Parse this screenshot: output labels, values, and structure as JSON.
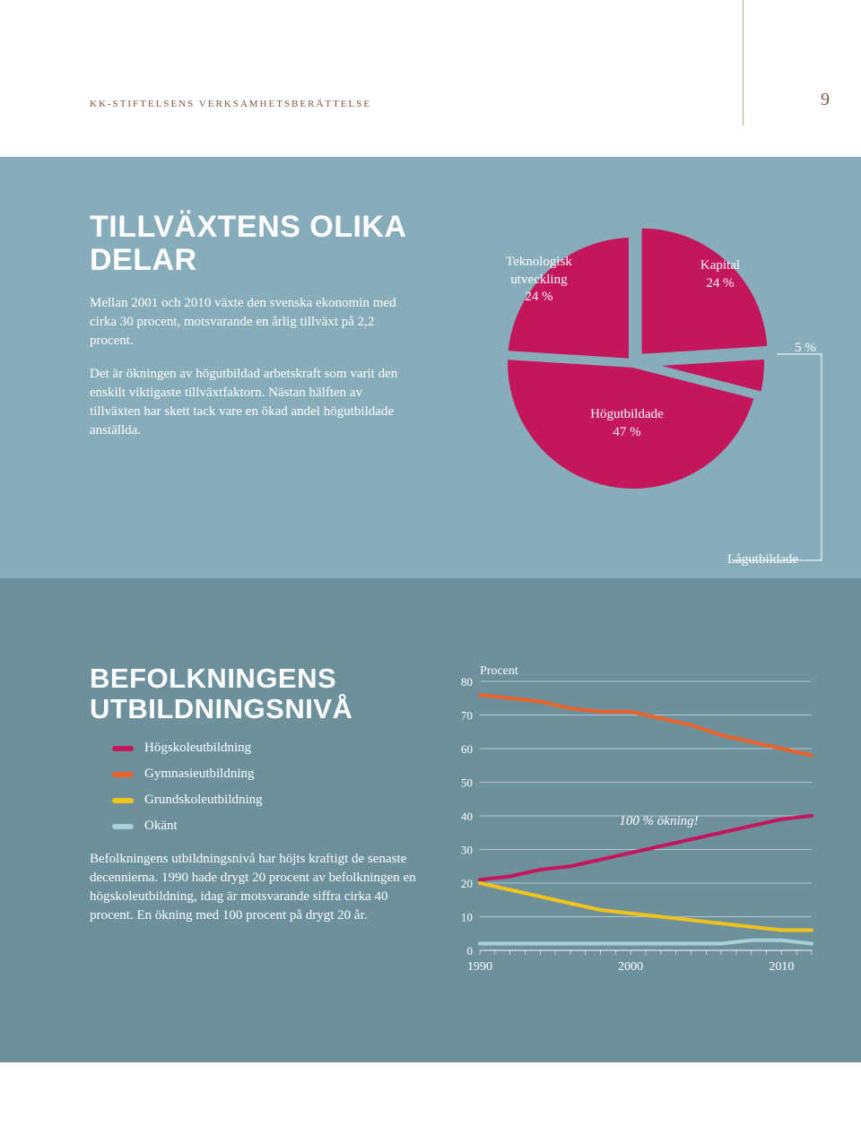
{
  "header": {
    "text": "kk-stiftelsens verksamhetsberättelse",
    "page_number": "9"
  },
  "colors": {
    "section1_bg": "#88adba",
    "section2_bg": "#6c919d",
    "magenta": "#c3165b",
    "orange": "#e8622a",
    "yellow": "#f2c419",
    "lightblue": "#a9d0d8",
    "white": "#ffffff",
    "brown": "#7f5a4a"
  },
  "section1": {
    "title": "TILLVÄXTENS OLIKA DELAR",
    "para1": "Mellan 2001 och 2010 växte den svenska ekonomin med cirka 30 procent, motsvarande en årlig tillväxt på 2,2 procent.",
    "para2": "Det är ökningen av högutbildad arbetskraft som varit den enskilt viktigaste tillväxtfaktorn. Nästan hälften av tillväxten har skett tack vare en ökad andel högutbildade anställda."
  },
  "pie": {
    "bg": "#88adba",
    "slices": [
      {
        "label_l1": "Teknologisk",
        "label_l2": "utveckling",
        "label_pct": "24 %",
        "value": 24,
        "color": "#c3165b"
      },
      {
        "label_l1": "Kapital",
        "label_pct": "24 %",
        "value": 24,
        "color": "#c3165b"
      },
      {
        "label_pct": "5 %",
        "value": 5,
        "color": "#c3165b"
      },
      {
        "label_l1": "Högutbildade",
        "label_pct": "47 %",
        "value": 47,
        "color": "#c3165b"
      }
    ],
    "footnote": "Lågutbildade"
  },
  "section2": {
    "title": "BEFOLKNINGENS UTBILDNINGSNIVÅ",
    "legend": [
      {
        "label": "Högskoleutbildning",
        "color": "#c3165b"
      },
      {
        "label": "Gymnasieutbildning",
        "color": "#e8622a"
      },
      {
        "label": "Grundskoleutbildning",
        "color": "#f2c419"
      },
      {
        "label": "Okänt",
        "color": "#a9d0d8"
      }
    ],
    "para": "Befolkningens utbildningsnivå har höjts kraftigt de senaste decennierna. 1990 hade drygt 20 procent av befolkningen en högskoleutbildning, idag är motsvarande siffra cirka 40 procent. En ökning med 100 procent på drygt 20 år."
  },
  "line_chart": {
    "ylabel": "Procent",
    "annotation": "100 % ökning!",
    "ymin": 0,
    "ymax": 80,
    "ytick_step": 10,
    "xmin": 1990,
    "xmax": 2012,
    "xticks": [
      1990,
      2000,
      2010
    ],
    "grid_color": "#ffffff",
    "series": [
      {
        "name": "Gymnasieutbildning",
        "color": "#e8622a",
        "points": [
          [
            1990,
            76
          ],
          [
            1992,
            75
          ],
          [
            1994,
            74
          ],
          [
            1996,
            72
          ],
          [
            1998,
            71
          ],
          [
            2000,
            71
          ],
          [
            2002,
            69
          ],
          [
            2004,
            67
          ],
          [
            2006,
            64
          ],
          [
            2008,
            62
          ],
          [
            2010,
            60
          ],
          [
            2012,
            58
          ]
        ]
      },
      {
        "name": "Högskoleutbildning",
        "color": "#c3165b",
        "points": [
          [
            1990,
            21
          ],
          [
            1992,
            22
          ],
          [
            1994,
            24
          ],
          [
            1996,
            25
          ],
          [
            1998,
            27
          ],
          [
            2000,
            29
          ],
          [
            2002,
            31
          ],
          [
            2004,
            33
          ],
          [
            2006,
            35
          ],
          [
            2008,
            37
          ],
          [
            2010,
            39
          ],
          [
            2012,
            40
          ]
        ]
      },
      {
        "name": "Grundskoleutbildning",
        "color": "#f2c419",
        "points": [
          [
            1990,
            20
          ],
          [
            1992,
            18
          ],
          [
            1994,
            16
          ],
          [
            1996,
            14
          ],
          [
            1998,
            12
          ],
          [
            2000,
            11
          ],
          [
            2002,
            10
          ],
          [
            2004,
            9
          ],
          [
            2006,
            8
          ],
          [
            2008,
            7
          ],
          [
            2010,
            6
          ],
          [
            2012,
            6
          ]
        ]
      },
      {
        "name": "Okänt",
        "color": "#a9d0d8",
        "points": [
          [
            1990,
            2
          ],
          [
            1992,
            2
          ],
          [
            1994,
            2
          ],
          [
            1996,
            2
          ],
          [
            1998,
            2
          ],
          [
            2000,
            2
          ],
          [
            2002,
            2
          ],
          [
            2004,
            2
          ],
          [
            2006,
            2
          ],
          [
            2008,
            3
          ],
          [
            2010,
            3
          ],
          [
            2012,
            2
          ]
        ]
      }
    ]
  }
}
